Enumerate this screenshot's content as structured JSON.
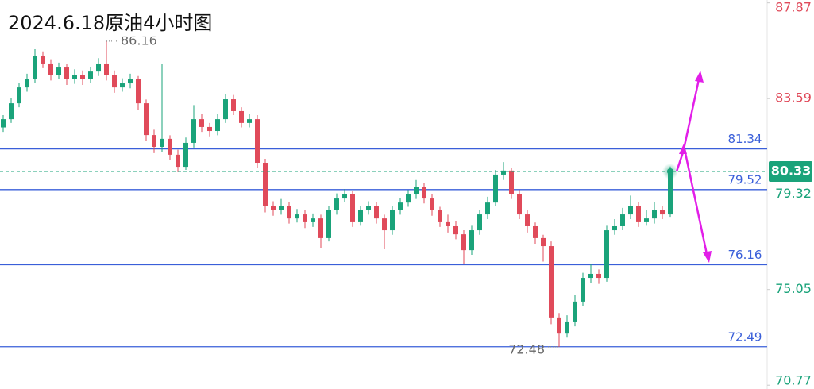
{
  "chart_data": {
    "type": "candlestick",
    "title": "2024.6.18原油4小时图",
    "ylim": [
      70.6,
      88.0
    ],
    "yticks": [
      70.77,
      75.05,
      79.32,
      83.59,
      87.87
    ],
    "up_color": "#1aa37a",
    "down_color": "#e04a5a",
    "level_color": "#3a5fd9",
    "levels": [
      81.34,
      79.52,
      76.16,
      72.49
    ],
    "last_price": 80.33,
    "high_label": 86.16,
    "low_label": 72.48,
    "candles": [
      [
        82.3,
        82.85,
        82.1,
        82.67
      ],
      [
        82.67,
        83.6,
        82.5,
        83.38
      ],
      [
        83.38,
        84.3,
        83.2,
        84.09
      ],
      [
        84.09,
        84.7,
        83.9,
        84.45
      ],
      [
        84.45,
        85.8,
        84.3,
        85.51
      ],
      [
        85.51,
        85.7,
        84.95,
        85.16
      ],
      [
        85.16,
        85.35,
        84.4,
        84.63
      ],
      [
        84.63,
        85.2,
        84.45,
        84.98
      ],
      [
        84.98,
        85.15,
        84.2,
        84.45
      ],
      [
        84.45,
        84.9,
        84.25,
        84.63
      ],
      [
        84.63,
        84.85,
        84.2,
        84.45
      ],
      [
        84.45,
        85.0,
        84.3,
        84.8
      ],
      [
        84.8,
        85.4,
        84.6,
        85.16
      ],
      [
        85.16,
        86.16,
        84.4,
        84.63
      ],
      [
        84.63,
        84.85,
        83.85,
        84.09
      ],
      [
        84.09,
        84.5,
        83.9,
        84.27
      ],
      [
        84.27,
        84.7,
        84.05,
        84.45
      ],
      [
        84.45,
        84.6,
        83.1,
        83.38
      ],
      [
        83.38,
        83.55,
        81.7,
        81.96
      ],
      [
        81.96,
        82.2,
        81.15,
        81.43
      ],
      [
        81.43,
        85.15,
        81.2,
        81.79
      ],
      [
        81.79,
        81.95,
        80.85,
        81.08
      ],
      [
        81.08,
        81.3,
        80.3,
        80.54
      ],
      [
        80.54,
        81.85,
        80.4,
        81.61
      ],
      [
        81.61,
        83.3,
        81.4,
        82.67
      ],
      [
        82.67,
        82.9,
        82.1,
        82.32
      ],
      [
        82.32,
        82.5,
        81.9,
        82.14
      ],
      [
        82.14,
        82.9,
        81.95,
        82.67
      ],
      [
        82.67,
        83.8,
        82.5,
        83.56
      ],
      [
        83.56,
        83.75,
        82.85,
        83.03
      ],
      [
        83.03,
        83.2,
        82.3,
        82.5
      ],
      [
        82.5,
        82.9,
        82.3,
        82.67
      ],
      [
        82.67,
        82.85,
        80.5,
        80.72
      ],
      [
        80.72,
        80.9,
        78.5,
        78.77
      ],
      [
        78.77,
        79.0,
        78.35,
        78.59
      ],
      [
        78.59,
        79.1,
        78.4,
        78.77
      ],
      [
        78.77,
        78.95,
        78.0,
        78.23
      ],
      [
        78.23,
        78.65,
        78.05,
        78.41
      ],
      [
        78.41,
        78.6,
        77.8,
        78.06
      ],
      [
        78.06,
        78.45,
        77.85,
        78.23
      ],
      [
        78.23,
        78.4,
        76.9,
        77.35
      ],
      [
        77.35,
        78.8,
        77.2,
        78.59
      ],
      [
        78.59,
        79.35,
        78.4,
        79.12
      ],
      [
        79.12,
        79.55,
        78.95,
        79.3
      ],
      [
        79.3,
        79.45,
        77.85,
        78.06
      ],
      [
        78.06,
        78.8,
        77.9,
        78.59
      ],
      [
        78.59,
        79.0,
        78.4,
        78.77
      ],
      [
        78.77,
        78.95,
        78.0,
        78.23
      ],
      [
        78.23,
        78.4,
        76.85,
        77.7
      ],
      [
        77.7,
        78.8,
        77.5,
        78.59
      ],
      [
        78.59,
        79.15,
        78.4,
        78.94
      ],
      [
        78.94,
        79.5,
        78.75,
        79.3
      ],
      [
        79.3,
        79.95,
        79.1,
        79.65
      ],
      [
        79.65,
        79.8,
        78.9,
        79.12
      ],
      [
        79.12,
        79.3,
        78.35,
        78.59
      ],
      [
        78.59,
        78.75,
        77.85,
        78.06
      ],
      [
        78.06,
        78.4,
        77.6,
        77.88
      ],
      [
        77.88,
        78.1,
        77.3,
        77.52
      ],
      [
        77.52,
        77.7,
        76.2,
        76.81
      ],
      [
        76.81,
        77.9,
        76.6,
        77.7
      ],
      [
        77.7,
        78.6,
        77.5,
        78.41
      ],
      [
        78.41,
        79.2,
        78.2,
        78.94
      ],
      [
        78.94,
        80.4,
        78.8,
        80.19
      ],
      [
        80.19,
        80.75,
        79.95,
        80.37
      ],
      [
        80.37,
        80.5,
        79.1,
        79.3
      ],
      [
        79.3,
        79.5,
        78.2,
        78.41
      ],
      [
        78.41,
        78.6,
        77.6,
        77.88
      ],
      [
        77.88,
        78.05,
        77.1,
        77.35
      ],
      [
        77.35,
        77.5,
        76.3,
        76.99
      ],
      [
        76.99,
        77.2,
        73.5,
        73.8
      ],
      [
        73.8,
        74.0,
        72.48,
        73.08
      ],
      [
        73.08,
        73.9,
        72.9,
        73.62
      ],
      [
        73.62,
        74.8,
        73.4,
        74.51
      ],
      [
        74.51,
        75.8,
        74.3,
        75.57
      ],
      [
        75.57,
        76.2,
        75.35,
        75.75
      ],
      [
        75.75,
        75.95,
        75.3,
        75.57
      ],
      [
        75.57,
        77.9,
        75.4,
        77.7
      ],
      [
        77.7,
        78.2,
        77.5,
        77.88
      ],
      [
        77.88,
        78.7,
        77.7,
        78.41
      ],
      [
        78.41,
        79.25,
        78.2,
        78.77
      ],
      [
        78.77,
        78.95,
        77.85,
        78.06
      ],
      [
        78.06,
        78.6,
        77.9,
        78.23
      ],
      [
        78.23,
        78.95,
        78.0,
        78.59
      ],
      [
        78.59,
        78.8,
        78.2,
        78.41
      ],
      [
        78.41,
        80.55,
        78.3,
        80.33
      ]
    ]
  }
}
